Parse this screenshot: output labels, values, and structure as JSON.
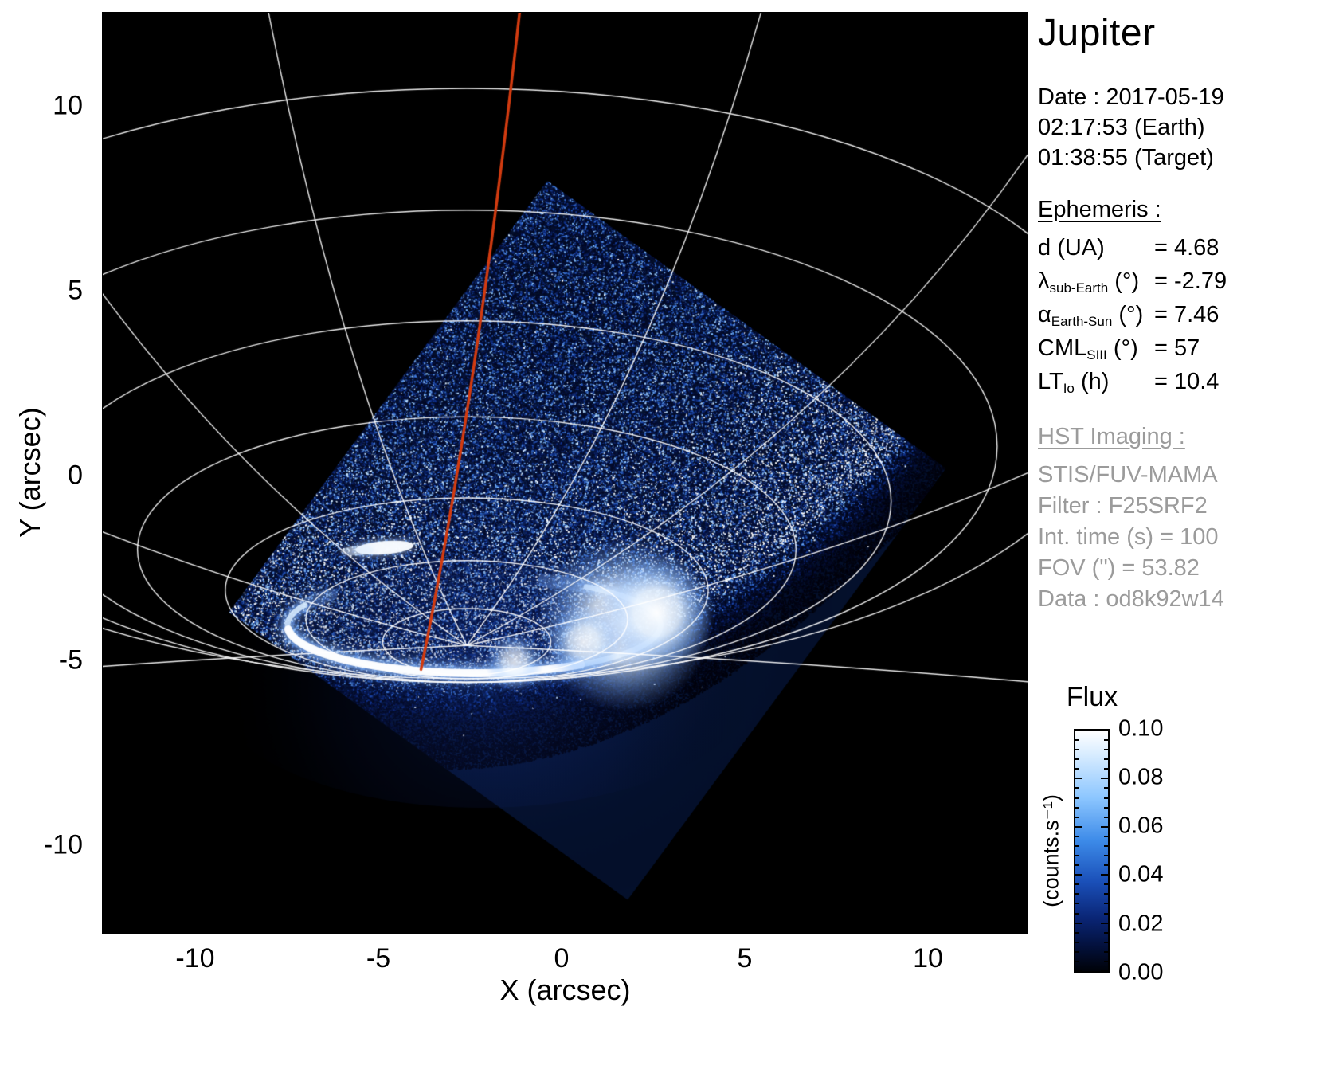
{
  "title": "Jupiter",
  "axes": {
    "xlabel": "X (arcsec)",
    "ylabel": "Y (arcsec)"
  },
  "info_panel": {
    "date_line": "Date : 2017-05-19",
    "earth_time": "02:17:53 (Earth)",
    "target_time": "01:38:55 (Target)",
    "ephemeris_heading": "Ephemeris :",
    "ephemeris": [
      {
        "symbol": "d",
        "sub": "",
        "unit": "(UA)",
        "value": "= 4.68"
      },
      {
        "symbol": "λ",
        "sub": "sub-Earth",
        "unit": "(°)",
        "value": "= -2.79"
      },
      {
        "symbol": "α",
        "sub": "Earth-Sun",
        "unit": "(°)",
        "value": "= 7.46"
      },
      {
        "symbol": "CML",
        "sub": "SIII",
        "unit": "(°)",
        "value": "= 57"
      },
      {
        "symbol": "LT",
        "sub": "Io",
        "unit": "(h)",
        "value": "= 10.4"
      }
    ],
    "hst_heading": "HST Imaging :",
    "hst_lines": [
      "STIS/FUV-MAMA",
      "Filter : F25SRF2",
      "Int. time (s) = 100",
      "FOV (\") = 53.82",
      "Data : od8k92w14"
    ]
  },
  "colorbar": {
    "title": "Flux",
    "unit_label": "(counts.s⁻¹)",
    "tick_labels": [
      "0.10",
      "0.08",
      "0.06",
      "0.04",
      "0.02",
      "0.00"
    ],
    "colormap_stops": [
      "#000000",
      "#0a2575",
      "#3c8ae8",
      "#8cc6ff",
      "#ffffff"
    ]
  },
  "chart_data": {
    "type": "heatmap",
    "title": "Jupiter",
    "xlabel": "X (arcsec)",
    "ylabel": "Y (arcsec)",
    "xlim": [
      -12.55,
      12.73
    ],
    "ylim": [
      -12.39,
      12.55
    ],
    "x_ticks": [
      -10,
      -5,
      0,
      5,
      10
    ],
    "y_ticks": [
      10,
      5,
      0,
      -5,
      -10
    ],
    "flux_range": [
      0.0,
      0.1
    ],
    "flux_ticks": [
      0.1,
      0.08,
      0.06,
      0.04,
      0.02,
      0.0
    ],
    "colormap": "black-blue-white",
    "grid": true,
    "legend": "none",
    "fov_polygon": [
      [
        -0.4,
        8.0
      ],
      [
        10.5,
        0.2
      ],
      [
        1.8,
        -11.5
      ],
      [
        -9.1,
        -3.7
      ]
    ],
    "planet_limb": {
      "x0": -3.2,
      "y0": -5.4,
      "k": 0.042
    },
    "pole": [
      -2.6,
      -4.6
    ],
    "graticule_parallels": [
      [
        2.3,
        0.9,
        0.1
      ],
      [
        4.4,
        1.6,
        0.7
      ],
      [
        6.6,
        2.5,
        1.5
      ],
      [
        9.0,
        3.6,
        2.6
      ],
      [
        11.6,
        4.9,
        3.9
      ],
      [
        14.5,
        6.4,
        5.4
      ],
      [
        17.8,
        8.0,
        7.1
      ]
    ],
    "graticule_meridians_deg": [
      -95,
      -65,
      -38,
      -15,
      22,
      45,
      68,
      95
    ],
    "cml_meridian": {
      "p0": [
        -1.15,
        12.6
      ],
      "ctrl": [
        -2.35,
        2.0
      ],
      "p2": [
        -3.85,
        -5.25
      ],
      "color": "#d23b10"
    },
    "aurora": {
      "main_oval": {
        "center": [
          -2.4,
          -4.05
        ],
        "rx": 5.1,
        "ry": 1.3
      },
      "bright_region_blobs": [
        [
          1.7,
          -4.0,
          2.4
        ],
        [
          2.6,
          -3.7,
          1.6
        ],
        [
          0.6,
          -4.5,
          1.0
        ],
        [
          -1.3,
          -5.05,
          0.8
        ]
      ],
      "io_footprint": [
        -4.85,
        -1.95
      ]
    }
  }
}
